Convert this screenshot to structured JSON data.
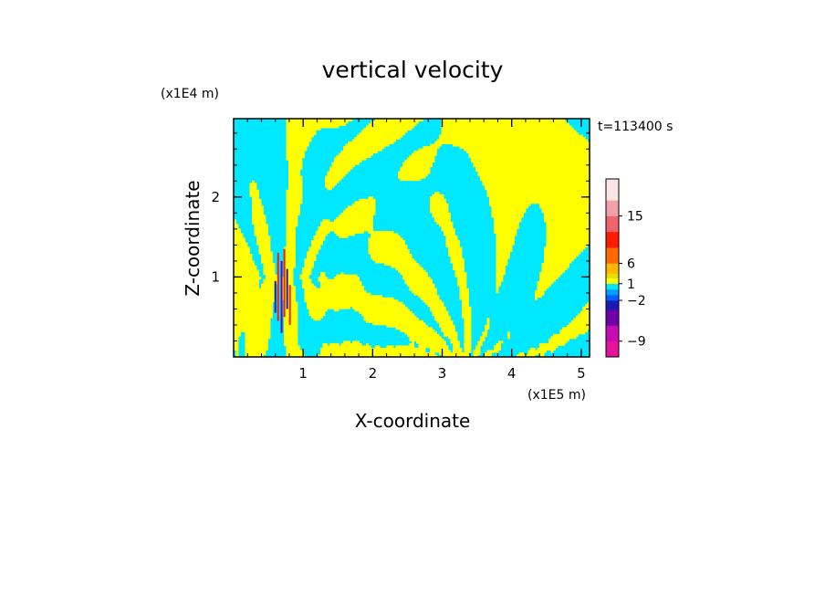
{
  "chart_data": {
    "type": "heatmap",
    "title": "vertical velocity",
    "xlabel": "X-coordinate",
    "ylabel": "Z-coordinate",
    "x_unit": "(x1E5 m)",
    "y_unit": "(x1E4 m)",
    "time_label": "t=113400 s",
    "xlim": [
      0,
      5.12
    ],
    "ylim": [
      0,
      2.98
    ],
    "x_ticks": [
      1,
      2,
      3,
      4,
      5
    ],
    "x_tick_labels": [
      "1",
      "2",
      "3",
      "4",
      "5"
    ],
    "y_ticks": [
      1,
      2
    ],
    "y_tick_labels": [
      "1",
      "2"
    ],
    "colorbar": {
      "levels": [
        -12,
        -9,
        -6,
        -3,
        -2,
        -1,
        0,
        1,
        2,
        3,
        6,
        9,
        12,
        15,
        18,
        21
      ],
      "colors": [
        "#e8119b",
        "#c60cb4",
        "#7000a8",
        "#1a1ab8",
        "#0060ff",
        "#00a0ff",
        "#00e8ff",
        "#ffff00",
        "#e8e000",
        "#ffb800",
        "#ff6a00",
        "#ff1a00",
        "#f0646e",
        "#f2a0aa",
        "#fbe4e4"
      ],
      "labels": [
        {
          "value": -9,
          "text": "−9"
        },
        {
          "value": -2,
          "text": "−2"
        },
        {
          "value": 1,
          "text": "1"
        },
        {
          "value": 6,
          "text": "6"
        },
        {
          "value": 15,
          "text": "15"
        }
      ]
    },
    "field": {
      "background": "#00e8ff",
      "dominant_positive": "#ffff00",
      "extreme_colors": [
        "#ff1a00",
        "#1a1ab8",
        "#7000a8"
      ],
      "regions": [
        {
          "level": "positive",
          "x": [
            0.45,
            0.95
          ],
          "z": [
            0,
            2.98
          ],
          "pattern": "vertical bands"
        },
        {
          "level": "positive",
          "x": [
            1.0,
            2.2
          ],
          "z": [
            1.3,
            2.3
          ],
          "pattern": "blobs"
        },
        {
          "level": "positive",
          "x": [
            2.1,
            3.4
          ],
          "z": [
            0,
            2.98
          ],
          "pattern": "diagonal bands"
        },
        {
          "level": "positive",
          "x": [
            3.3,
            4.6
          ],
          "z": [
            0.3,
            1.8
          ],
          "pattern": "fan of bands"
        },
        {
          "level": "negative",
          "x": [
            1.4,
            2.4
          ],
          "z": [
            0,
            1.2
          ],
          "pattern": "broad area"
        },
        {
          "level": "negative",
          "x": [
            3.6,
            5.1
          ],
          "z": [
            0,
            1.1
          ],
          "pattern": "broad area"
        }
      ]
    }
  }
}
